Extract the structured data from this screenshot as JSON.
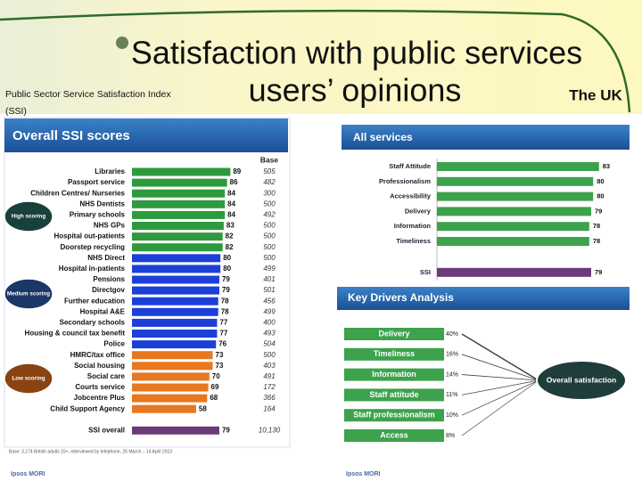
{
  "header": {
    "title_line1": "Satisfaction with public services",
    "title_line2": "users’ opinions",
    "subtitle_line1": "Public Sector Service Satisfaction Index",
    "subtitle_line2": "(SSI)",
    "region": "The UK"
  },
  "chart_data": [
    {
      "type": "bar",
      "title": "Overall SSI scores",
      "base_heading": "Base",
      "categories": [
        "Libraries",
        "Passport service",
        "Children Centres/ Nurseries",
        "NHS Dentists",
        "Primary schools",
        "NHS GPs",
        "Hospital out-patients",
        "Doorstep recycling",
        "NHS Direct",
        "Hospital in-patients",
        "Pensions",
        "Directgov",
        "Further education",
        "Hospital A&E",
        "Secondary schools",
        "Housing & council tax benefit",
        "Police",
        "HMRC/tax office",
        "Social housing",
        "Social care",
        "Courts service",
        "Jobcentre Plus",
        "Child Support Agency",
        "SSI overall"
      ],
      "values": [
        89,
        86,
        84,
        84,
        84,
        83,
        82,
        82,
        80,
        80,
        79,
        79,
        78,
        78,
        77,
        77,
        76,
        73,
        73,
        70,
        69,
        68,
        58,
        79
      ],
      "bases": [
        505,
        482,
        300,
        500,
        492,
        500,
        500,
        500,
        500,
        499,
        401,
        501,
        456,
        499,
        400,
        493,
        504,
        500,
        403,
        491,
        172,
        366,
        164,
        {
          "value": 10130,
          "label": "10,130"
        }
      ],
      "colors": [
        "#2e9a3e",
        "#2e9a3e",
        "#2e9a3e",
        "#2e9a3e",
        "#2e9a3e",
        "#2e9a3e",
        "#2e9a3e",
        "#2e9a3e",
        "#1c3fd8",
        "#1c3fd8",
        "#1c3fd8",
        "#1c3fd8",
        "#1c3fd8",
        "#1c3fd8",
        "#1c3fd8",
        "#1c3fd8",
        "#1c3fd8",
        "#e8771f",
        "#e8771f",
        "#e8771f",
        "#e8771f",
        "#e8771f",
        "#e8771f",
        "#6b3a78"
      ],
      "group_labels": [
        "High scoring",
        "Medium scoring",
        "Low scoring"
      ],
      "group_colors": [
        "#17413a",
        "#1b3766",
        "#8a4312"
      ],
      "xlim": [
        0,
        100
      ]
    },
    {
      "type": "bar",
      "title": "All services",
      "categories": [
        "Staff Attitude",
        "Professionalism",
        "Accessibility",
        "Delivery",
        "Information",
        "Timeliness",
        "SSI"
      ],
      "values": [
        83,
        80,
        80,
        79,
        78,
        78,
        79
      ],
      "colors": [
        "#3ca24c",
        "#3ca24c",
        "#3ca24c",
        "#3ca24c",
        "#3ca24c",
        "#3ca24c",
        "#6b3a78"
      ],
      "xlim": [
        0,
        100
      ]
    },
    {
      "type": "drivers",
      "title": "Key Drivers Analysis",
      "categories": [
        "Delivery",
        "Timeliness",
        "Information",
        "Staff attitude",
        "Staff professionalism",
        "Access"
      ],
      "values": [
        40,
        16,
        14,
        11,
        10,
        8
      ],
      "value_labels": [
        "40%",
        "16%",
        "14%",
        "11%",
        "10%",
        "8%"
      ],
      "color": "#3ca24c",
      "target": "Overall satisfaction"
    }
  ],
  "footer": {
    "base_note": "Base: 3,174 British adults 15+, interviewed by telephone, 25 March – 14 April 2013",
    "brand": "Ipsos MORI"
  }
}
